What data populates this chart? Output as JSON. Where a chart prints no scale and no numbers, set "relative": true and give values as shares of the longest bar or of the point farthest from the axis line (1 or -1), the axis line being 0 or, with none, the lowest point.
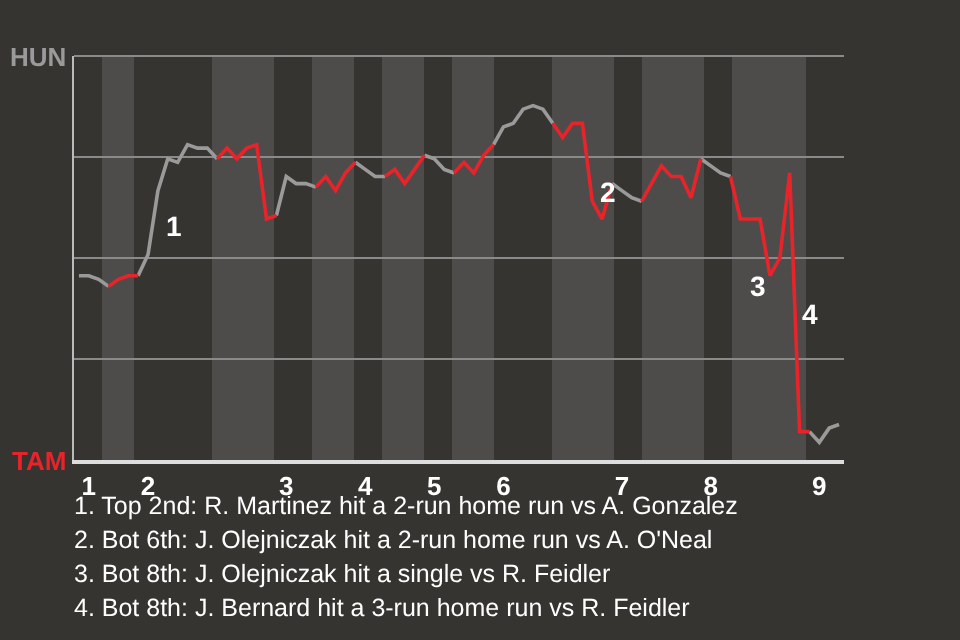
{
  "chart_data": {
    "type": "line",
    "relative": true,
    "categories": [
      null,
      "1",
      null,
      null,
      null,
      null,
      null,
      "2",
      null,
      null,
      null,
      null,
      null,
      null,
      null,
      null,
      null,
      null,
      null,
      null,
      null,
      "3",
      null,
      null,
      null,
      null,
      null,
      null,
      null,
      "4",
      null,
      null,
      null,
      null,
      null,
      null,
      "5",
      null,
      null,
      null,
      null,
      null,
      null,
      "6",
      null,
      null,
      null,
      null,
      null,
      null,
      null,
      null,
      null,
      null,
      null,
      "7",
      null,
      null,
      null,
      null,
      null,
      null,
      null,
      null,
      "8",
      null,
      null,
      null,
      null,
      null,
      null,
      null,
      null,
      null,
      null,
      "9",
      null,
      null
    ],
    "grid": "y",
    "marker": "none",
    "line_style": "solid",
    "series": [
      {
        "color": "#9a9a9a",
        "values": [
          0.52,
          0.52,
          0.51,
          0.49,
          null,
          null,
          0.52,
          0.58,
          0.76,
          0.85,
          0.84,
          0.89,
          0.88,
          0.88,
          0.85,
          null,
          null,
          null,
          null,
          null,
          0.69,
          0.8,
          0.78,
          0.78,
          0.77,
          null,
          null,
          null,
          0.84,
          0.82,
          0.8,
          0.8,
          null,
          null,
          null,
          0.86,
          0.85,
          0.82,
          0.81,
          null,
          null,
          null,
          0.89,
          0.94,
          0.95,
          0.99,
          1,
          0.99,
          0.95,
          null,
          null,
          null,
          null,
          null,
          0.78,
          0.76,
          0.74,
          0.73,
          null,
          null,
          null,
          null,
          null,
          0.85,
          0.83,
          0.81,
          0.8,
          null,
          null,
          null,
          null,
          null,
          null,
          null,
          0.08,
          0.05,
          0.09,
          0.1
        ]
      },
      {
        "color": "#e8232a",
        "values": [
          null,
          null,
          null,
          0.49,
          0.51,
          0.52,
          0.52,
          null,
          null,
          null,
          null,
          null,
          null,
          null,
          0.85,
          0.88,
          0.85,
          0.88,
          0.89,
          0.68,
          0.69,
          null,
          null,
          null,
          0.77,
          0.8,
          0.76,
          0.81,
          0.84,
          null,
          null,
          0.8,
          0.82,
          0.78,
          0.82,
          0.86,
          null,
          null,
          0.81,
          0.84,
          0.81,
          0.86,
          0.89,
          null,
          null,
          null,
          null,
          null,
          0.95,
          0.91,
          0.95,
          0.95,
          0.73,
          0.68,
          0.78,
          null,
          null,
          0.73,
          0.78,
          0.83,
          0.8,
          0.8,
          0.74,
          0.85,
          null,
          null,
          0.8,
          0.68,
          0.68,
          0.68,
          0.52,
          0.57,
          0.81,
          0.08,
          0.08,
          null,
          null,
          null
        ]
      }
    ],
    "annotations": [
      "HUN",
      "TAM",
      "1",
      "2",
      "3",
      "4",
      "1. Top 2nd: R. Martinez hit a 2-run home run vs A. Gonzalez",
      "2. Bot 6th: J. Olejniczak hit a 2-run home run vs A. O'Neal",
      "3. Bot 8th: J. Olejniczak hit a single vs R. Feidler",
      "4. Bot 8th: J. Bernard hit a 3-run home run vs R. Feidler"
    ]
  }
}
